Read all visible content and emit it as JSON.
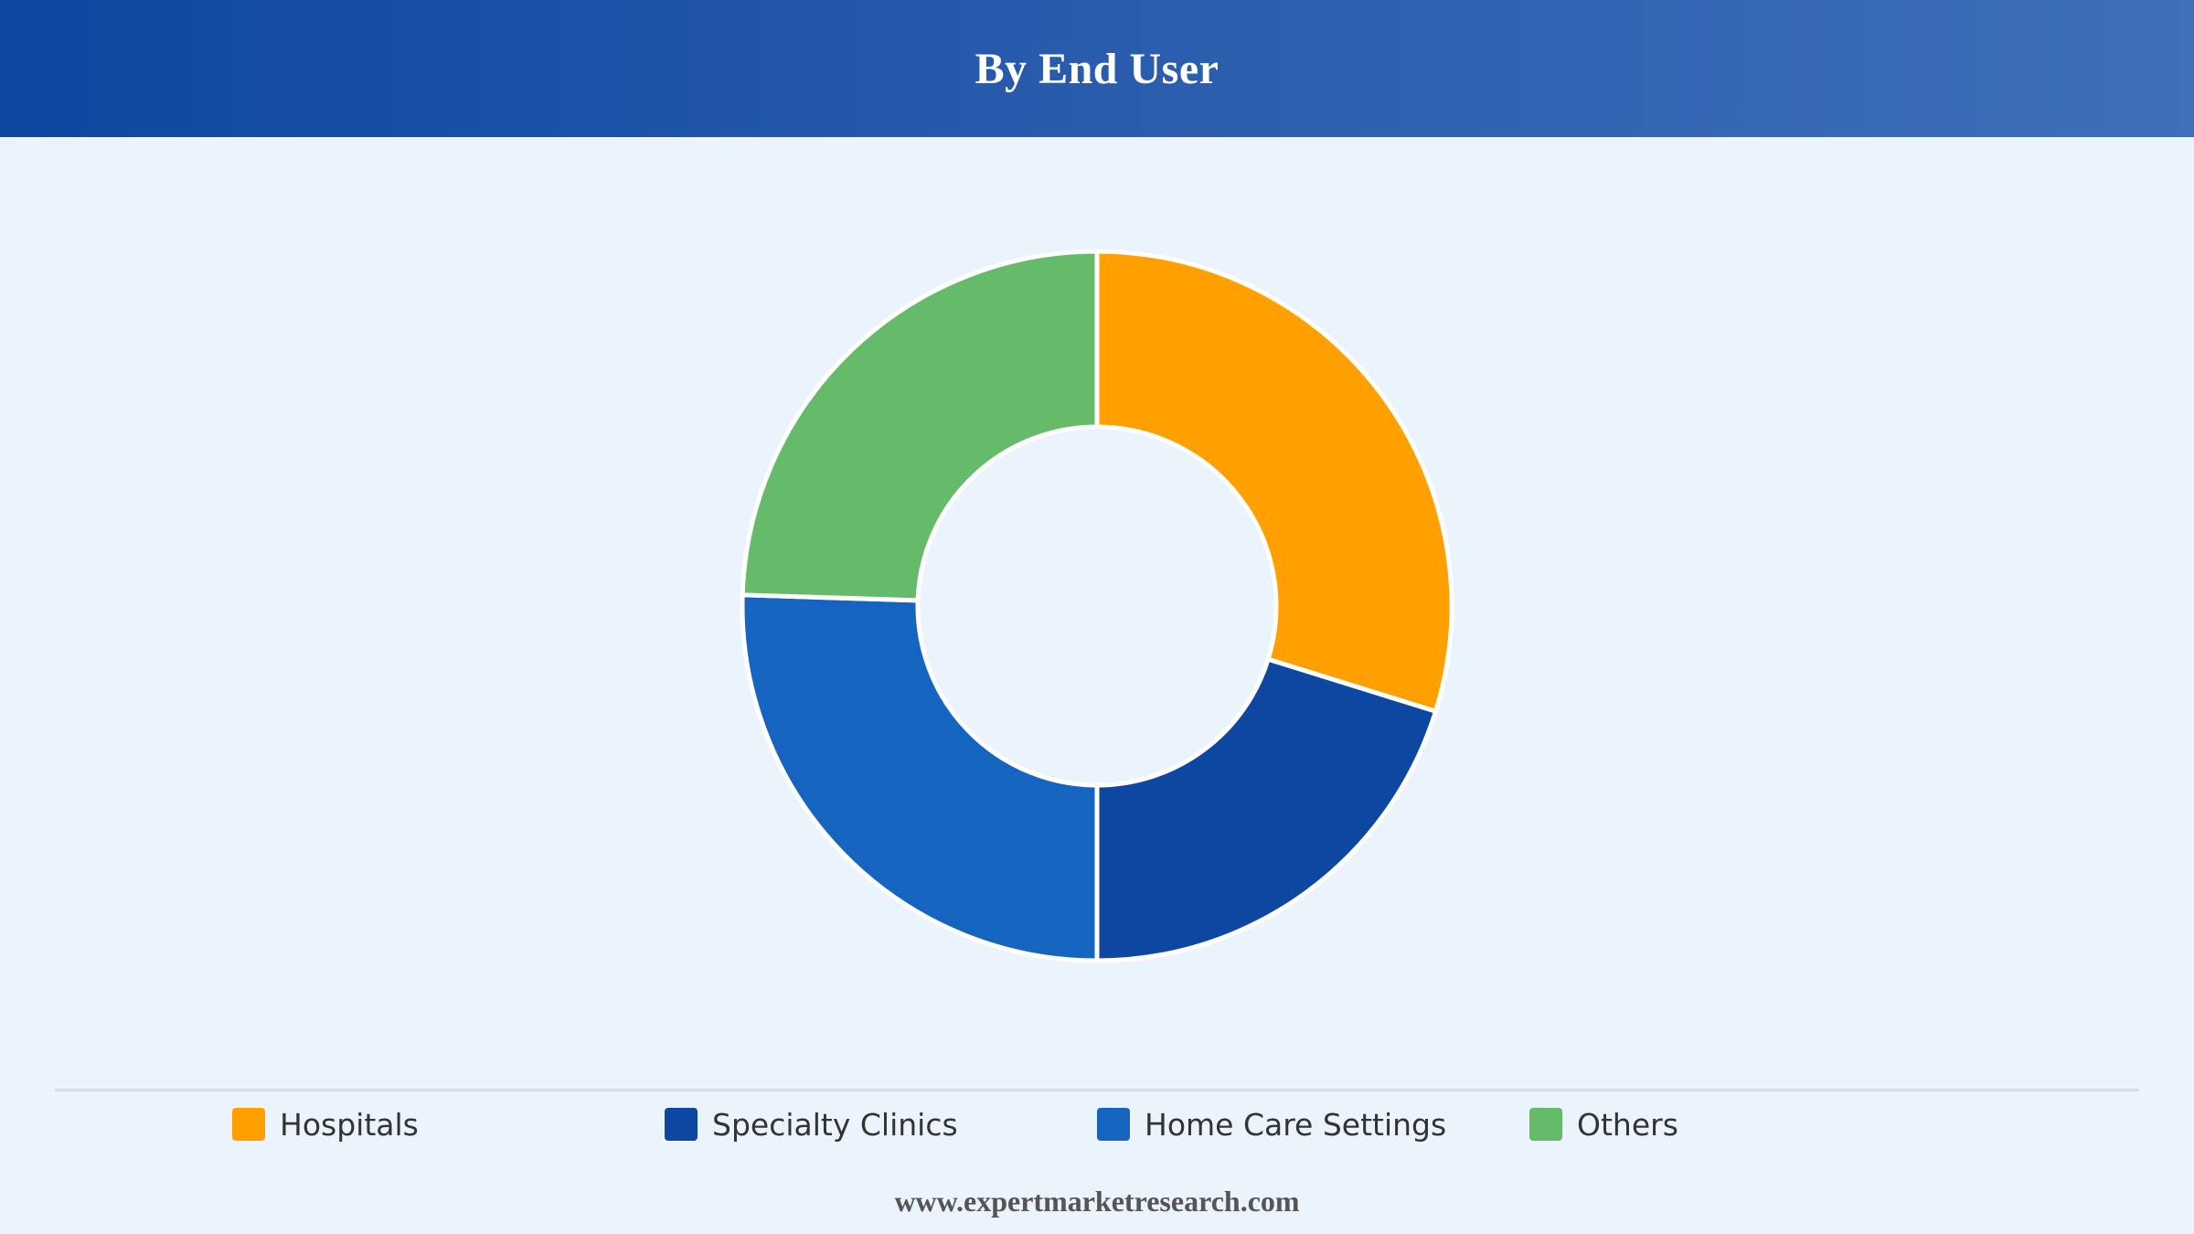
{
  "header": {
    "title": "By End User"
  },
  "chart_data": {
    "type": "pie",
    "donut": true,
    "title": "By End User",
    "categories": [
      "Hospitals",
      "Specialty Clinics",
      "Home Care Settings",
      "Others"
    ],
    "values": [
      29.8,
      20.2,
      25.5,
      24.5
    ],
    "unit": "percent",
    "colors": [
      "#ffa000",
      "#0d47a1",
      "#1565c0",
      "#66bb6a"
    ],
    "legend_position": "bottom",
    "grid": false
  },
  "legend": {
    "items": [
      {
        "label": "Hospitals",
        "color": "#ffa000"
      },
      {
        "label": "Specialty Clinics",
        "color": "#0d47a1"
      },
      {
        "label": "Home Care Settings",
        "color": "#1565c0"
      },
      {
        "label": "Others",
        "color": "#66bb6a"
      }
    ]
  },
  "footer": {
    "source": "www.expertmarketresearch.com"
  }
}
